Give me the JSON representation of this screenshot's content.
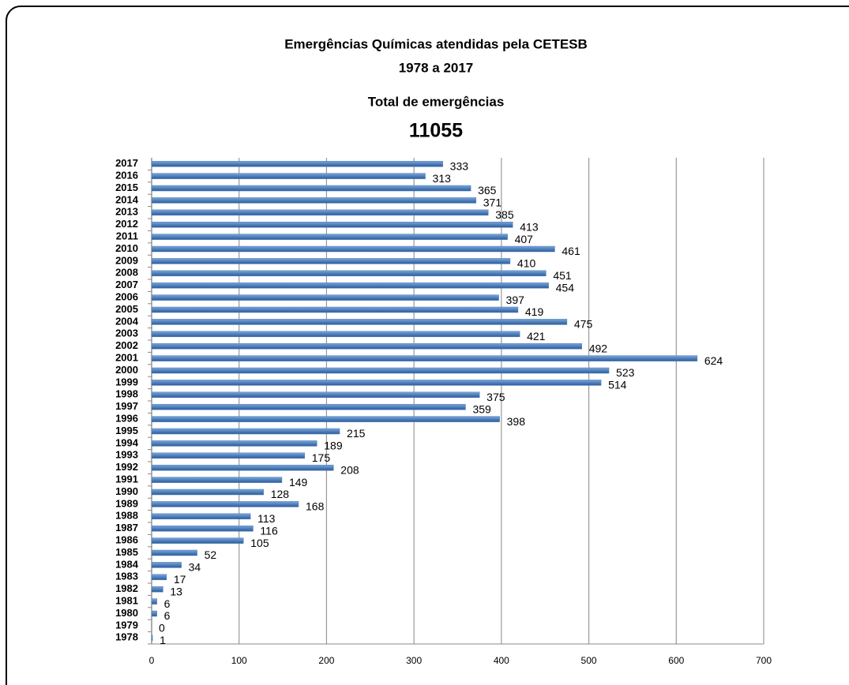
{
  "chart_data": {
    "type": "bar",
    "orientation": "horizontal",
    "title": "Emergências Químicas atendidas pela CETESB",
    "subtitle": "1978 a 2017",
    "total_label": "Total de emergências",
    "total": 11055,
    "categories": [
      "1978",
      "1979",
      "1980",
      "1981",
      "1982",
      "1983",
      "1984",
      "1985",
      "1986",
      "1987",
      "1988",
      "1989",
      "1990",
      "1991",
      "1992",
      "1993",
      "1994",
      "1995",
      "1996",
      "1997",
      "1998",
      "1999",
      "2000",
      "2001",
      "2002",
      "2003",
      "2004",
      "2005",
      "2006",
      "2007",
      "2008",
      "2009",
      "2010",
      "2011",
      "2012",
      "2013",
      "2014",
      "2015",
      "2016",
      "2017"
    ],
    "values": [
      1,
      0,
      6,
      6,
      13,
      17,
      34,
      52,
      105,
      116,
      113,
      168,
      128,
      149,
      208,
      175,
      189,
      215,
      398,
      359,
      375,
      514,
      523,
      624,
      492,
      421,
      475,
      419,
      397,
      454,
      451,
      410,
      461,
      407,
      413,
      385,
      371,
      365,
      313,
      333
    ],
    "color": "#4f81bd",
    "xlim": [
      0,
      700
    ],
    "xticks": [
      0,
      100,
      200,
      300,
      400,
      500,
      600,
      700
    ],
    "grid": true
  }
}
